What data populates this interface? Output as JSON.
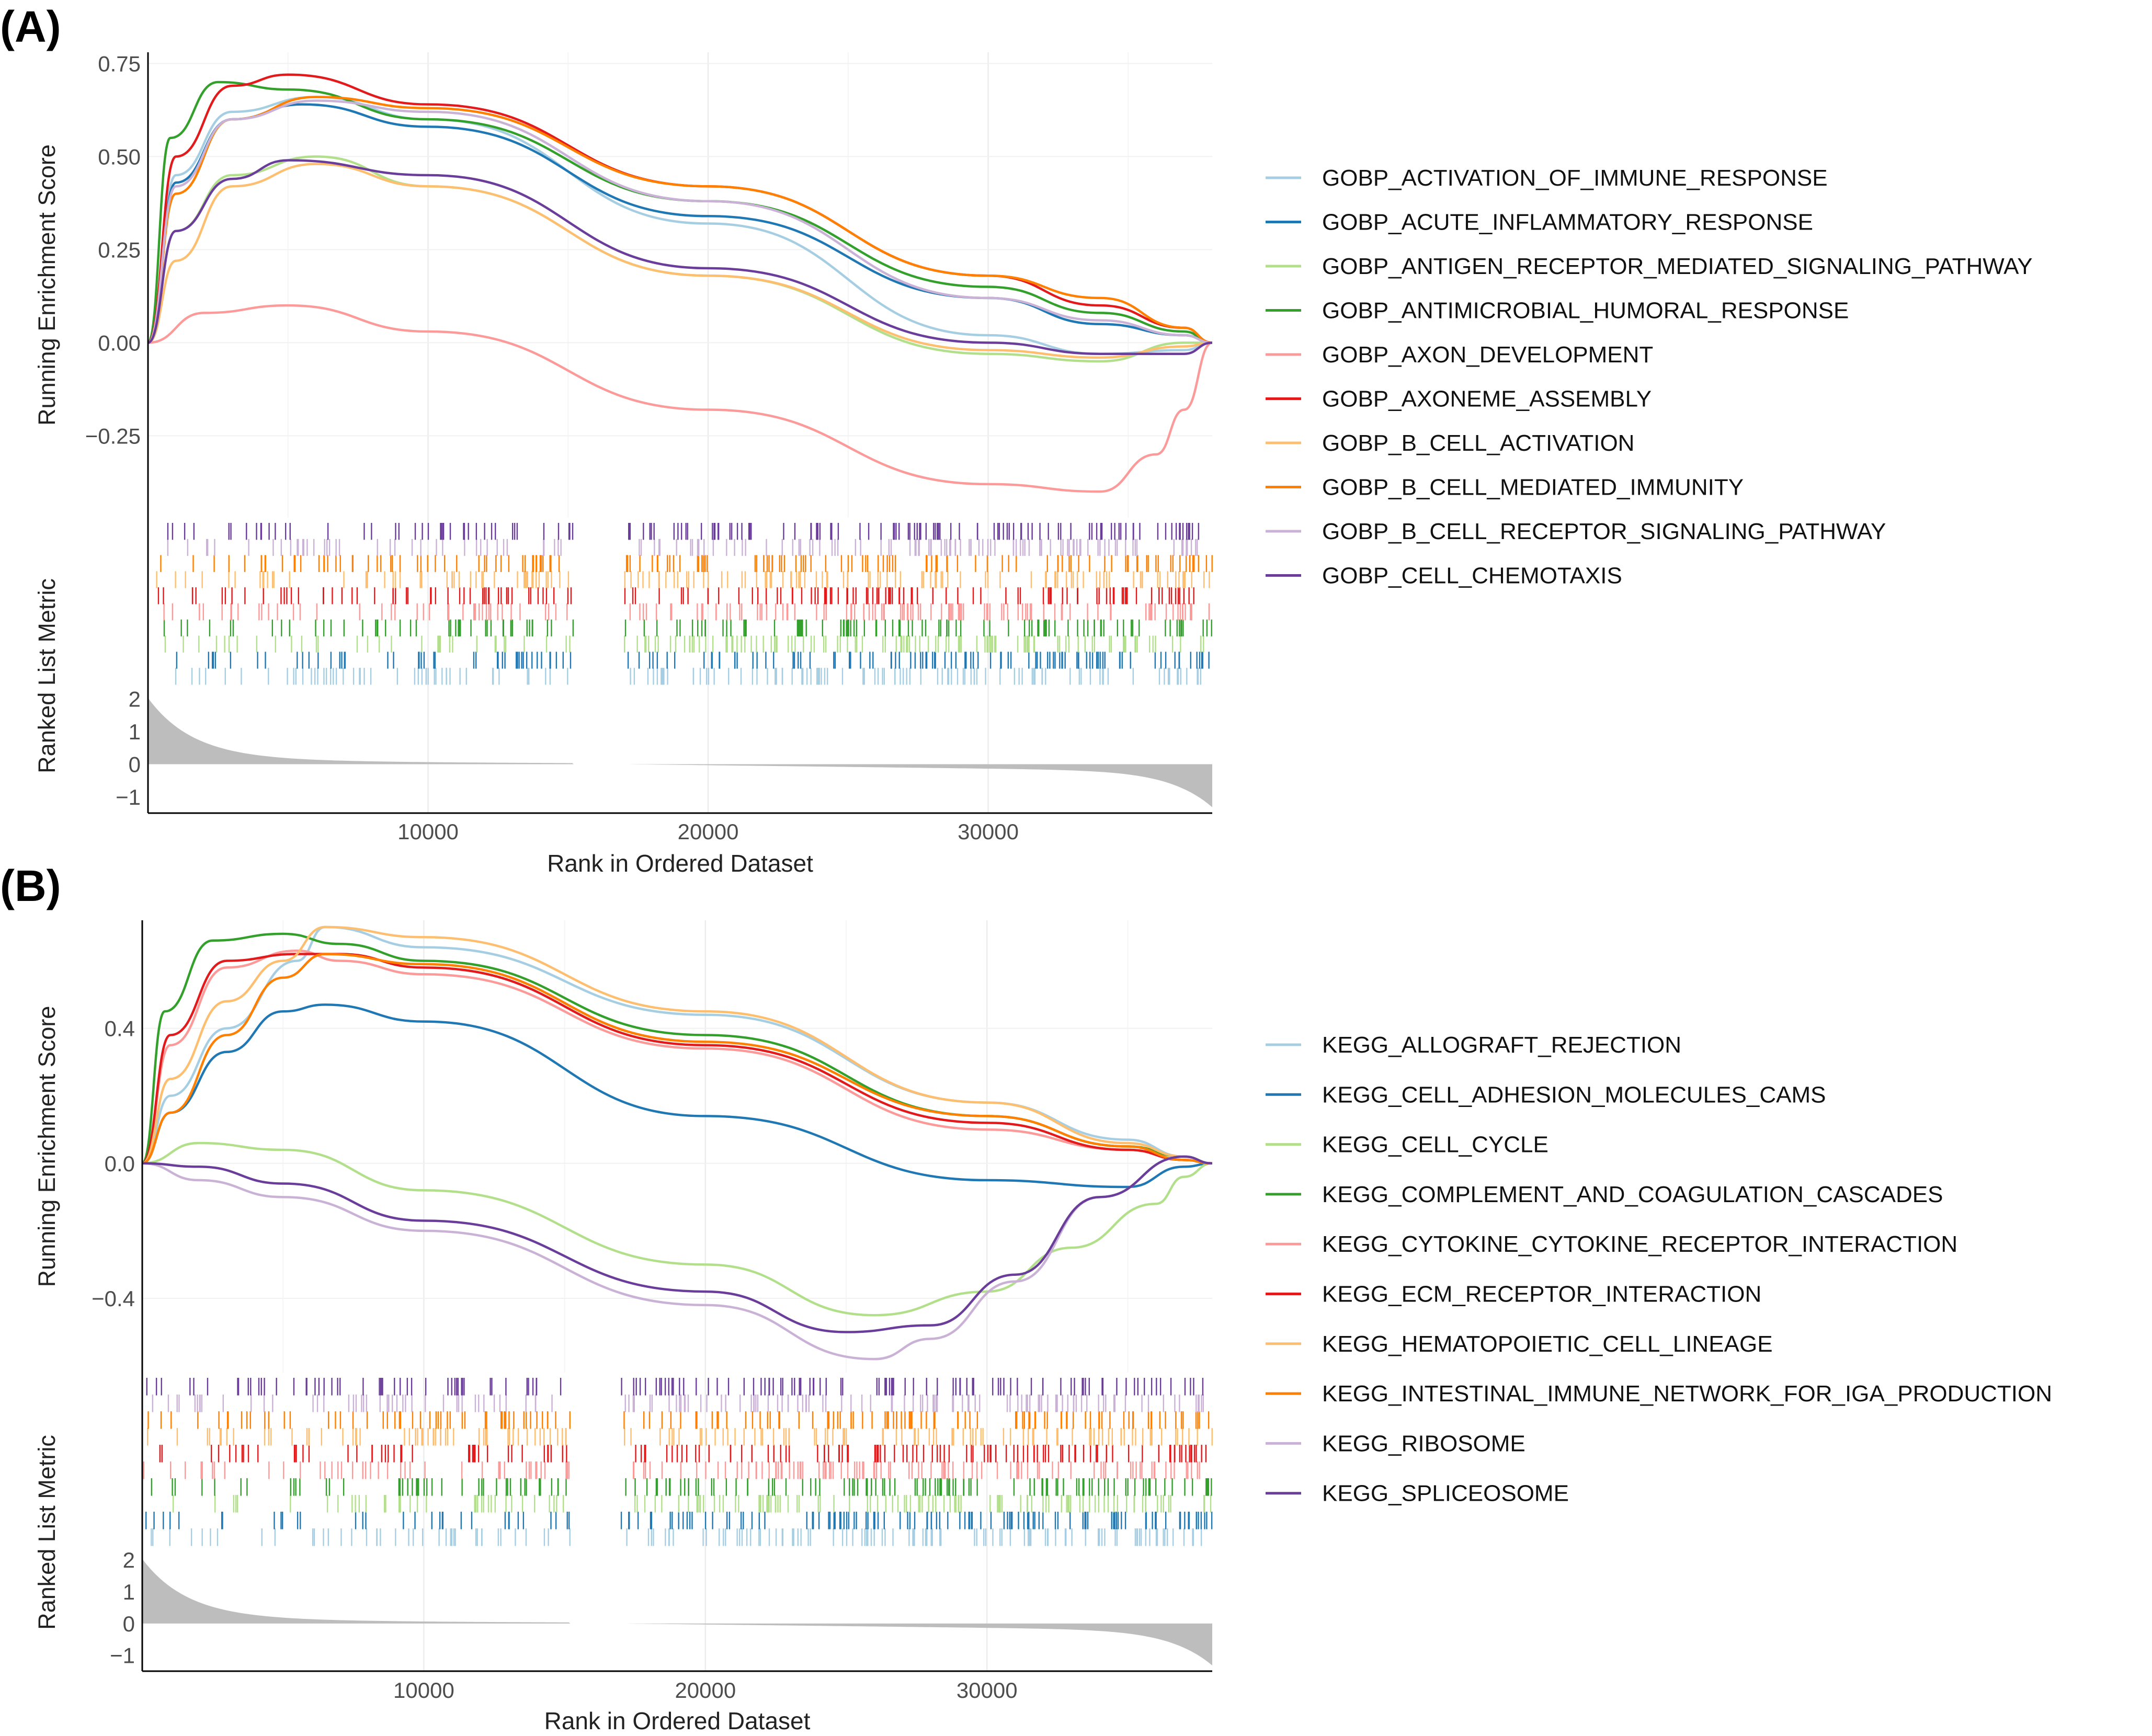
{
  "panels": [
    {
      "label": "(A)",
      "chart_data": {
        "type": "line",
        "title": "",
        "xlabel": "Rank in Ordered Dataset",
        "ylabel_top": "Running Enrichment Score",
        "ylabel_bottom": "Ranked List Metric",
        "xlim": [
          0,
          38000
        ],
        "ylim": [
          -0.47,
          0.78
        ],
        "x_ticks": [
          10000,
          20000,
          30000
        ],
        "x_tick_labels": [
          "10000",
          "20000",
          "30000"
        ],
        "y_ticks": [
          -0.25,
          0,
          0.25,
          0.5,
          0.75
        ],
        "y_tick_labels": [
          "−0.25",
          "0.00",
          "0.25",
          "0.50",
          "0.75"
        ],
        "metric_ylim": [
          -1.5,
          2.3
        ],
        "metric_ticks": [
          2,
          1,
          0,
          -1
        ],
        "metric_tick_labels": [
          "2",
          "1",
          "0",
          "−1"
        ],
        "metric_fill": "#bdbdbd",
        "gap_range": [
          15200,
          17000
        ],
        "legend_position": "right",
        "series": [
          {
            "name": "GOBP_ACTIVATION_OF_IMMUNE_RESPONSE",
            "color": "#a6cee3",
            "x": [
              0,
              1000,
              3000,
              6000,
              10000,
              20000,
              30000,
              34000,
              37000,
              38000
            ],
            "values": [
              0,
              0.45,
              0.62,
              0.66,
              0.6,
              0.32,
              0.02,
              -0.03,
              -0.02,
              0
            ]
          },
          {
            "name": "GOBP_ACUTE_INFLAMMATORY_RESPONSE",
            "color": "#1f78b4",
            "x": [
              0,
              1000,
              3000,
              5500,
              10000,
              20000,
              30000,
              34000,
              37000,
              38000
            ],
            "values": [
              0,
              0.43,
              0.6,
              0.64,
              0.58,
              0.34,
              0.12,
              0.05,
              0.02,
              0
            ]
          },
          {
            "name": "GOBP_ANTIGEN_RECEPTOR_MEDIATED_SIGNALING_PATHWAY",
            "color": "#b2df8a",
            "x": [
              0,
              1000,
              3000,
              6000,
              10000,
              20000,
              30000,
              34000,
              37000,
              38000
            ],
            "values": [
              0,
              0.3,
              0.45,
              0.5,
              0.42,
              0.18,
              -0.03,
              -0.05,
              0,
              0
            ]
          },
          {
            "name": "GOBP_ANTIMICROBIAL_HUMORAL_RESPONSE",
            "color": "#33a02c",
            "x": [
              0,
              800,
              2500,
              5000,
              10000,
              20000,
              30000,
              34000,
              37000,
              38000
            ],
            "values": [
              0,
              0.55,
              0.7,
              0.68,
              0.6,
              0.38,
              0.15,
              0.08,
              0.03,
              0
            ]
          },
          {
            "name": "GOBP_AXON_DEVELOPMENT",
            "color": "#fb9a99",
            "x": [
              0,
              2000,
              5000,
              10000,
              20000,
              30000,
              34000,
              36000,
              37000,
              38000
            ],
            "values": [
              0,
              0.08,
              0.1,
              0.03,
              -0.18,
              -0.38,
              -0.4,
              -0.3,
              -0.18,
              0
            ]
          },
          {
            "name": "GOBP_AXONEME_ASSEMBLY",
            "color": "#e31a1c",
            "x": [
              0,
              1000,
              3000,
              5000,
              10000,
              20000,
              30000,
              34000,
              37000,
              38000
            ],
            "values": [
              0,
              0.5,
              0.69,
              0.72,
              0.64,
              0.42,
              0.18,
              0.1,
              0.04,
              0
            ]
          },
          {
            "name": "GOBP_B_CELL_ACTIVATION",
            "color": "#fdbf6f",
            "x": [
              0,
              1000,
              3000,
              6000,
              10000,
              20000,
              30000,
              34000,
              37000,
              38000
            ],
            "values": [
              0,
              0.22,
              0.42,
              0.48,
              0.42,
              0.18,
              -0.02,
              -0.04,
              -0.01,
              0
            ]
          },
          {
            "name": "GOBP_B_CELL_MEDIATED_IMMUNITY",
            "color": "#ff7f00",
            "x": [
              0,
              1000,
              3000,
              6000,
              10000,
              20000,
              30000,
              34000,
              37000,
              38000
            ],
            "values": [
              0,
              0.4,
              0.6,
              0.66,
              0.63,
              0.42,
              0.18,
              0.12,
              0.04,
              0
            ]
          },
          {
            "name": "GOBP_B_CELL_RECEPTOR_SIGNALING_PATHWAY",
            "color": "#cab2d6",
            "x": [
              0,
              1000,
              3000,
              6000,
              10000,
              20000,
              30000,
              34000,
              37000,
              38000
            ],
            "values": [
              0,
              0.42,
              0.6,
              0.65,
              0.62,
              0.38,
              0.12,
              0.06,
              0.02,
              0
            ]
          },
          {
            "name": "GOBP_CELL_CHEMOTAXIS",
            "color": "#6a3d9a",
            "x": [
              0,
              1000,
              3000,
              5000,
              10000,
              20000,
              30000,
              34000,
              37000,
              38000
            ],
            "values": [
              0,
              0.3,
              0.44,
              0.49,
              0.45,
              0.2,
              0,
              -0.03,
              -0.03,
              0
            ]
          }
        ]
      }
    },
    {
      "label": "(B)",
      "chart_data": {
        "type": "line",
        "title": "",
        "xlabel": "Rank in Ordered Dataset",
        "ylabel_top": "Running Enrichment Score",
        "ylabel_bottom": "Ranked List Metric",
        "xlim": [
          0,
          38000
        ],
        "ylim": [
          -0.62,
          0.72
        ],
        "x_ticks": [
          10000,
          20000,
          30000
        ],
        "x_tick_labels": [
          "10000",
          "20000",
          "30000"
        ],
        "y_ticks": [
          -0.4,
          0,
          0.4
        ],
        "y_tick_labels": [
          "−0.4",
          "0.0",
          "0.4"
        ],
        "metric_ylim": [
          -1.5,
          2.3
        ],
        "metric_ticks": [
          2,
          1,
          0,
          -1
        ],
        "metric_tick_labels": [
          "2",
          "1",
          "0",
          "−1"
        ],
        "metric_fill": "#bdbdbd",
        "gap_range": [
          15200,
          17000
        ],
        "legend_position": "right",
        "series": [
          {
            "name": "KEGG_ALLOGRAFT_REJECTION",
            "color": "#a6cee3",
            "x": [
              0,
              1000,
              3000,
              5500,
              6500,
              10000,
              20000,
              30000,
              35000,
              37000,
              38000
            ],
            "values": [
              0,
              0.2,
              0.4,
              0.6,
              0.7,
              0.64,
              0.44,
              0.18,
              0.07,
              0.02,
              0
            ]
          },
          {
            "name": "KEGG_CELL_ADHESION_MOLECULES_CAMS",
            "color": "#1f78b4",
            "x": [
              0,
              1000,
              3000,
              5000,
              6500,
              10000,
              20000,
              30000,
              35000,
              37000,
              38000
            ],
            "values": [
              0,
              0.15,
              0.33,
              0.45,
              0.47,
              0.42,
              0.14,
              -0.05,
              -0.07,
              -0.01,
              0
            ]
          },
          {
            "name": "KEGG_CELL_CYCLE",
            "color": "#b2df8a",
            "x": [
              0,
              2000,
              5000,
              10000,
              20000,
              26000,
              30000,
              33000,
              36000,
              37000,
              38000
            ],
            "values": [
              0,
              0.06,
              0.04,
              -0.08,
              -0.3,
              -0.45,
              -0.38,
              -0.25,
              -0.12,
              -0.04,
              0
            ]
          },
          {
            "name": "KEGG_COMPLEMENT_AND_COAGULATION_CASCADES",
            "color": "#33a02c",
            "x": [
              0,
              800,
              2500,
              5000,
              7000,
              10000,
              20000,
              30000,
              35000,
              37000,
              38000
            ],
            "values": [
              0,
              0.45,
              0.66,
              0.68,
              0.65,
              0.6,
              0.38,
              0.14,
              0.05,
              0.02,
              0
            ]
          },
          {
            "name": "KEGG_CYTOKINE_CYTOKINE_RECEPTOR_INTERACTION",
            "color": "#fb9a99",
            "x": [
              0,
              1000,
              3000,
              5500,
              7000,
              10000,
              20000,
              30000,
              35000,
              37000,
              38000
            ],
            "values": [
              0,
              0.35,
              0.58,
              0.63,
              0.6,
              0.56,
              0.34,
              0.1,
              0.04,
              0.01,
              0
            ]
          },
          {
            "name": "KEGG_ECM_RECEPTOR_INTERACTION",
            "color": "#e31a1c",
            "x": [
              0,
              1000,
              3000,
              5500,
              7000,
              10000,
              20000,
              30000,
              35000,
              37000,
              38000
            ],
            "values": [
              0,
              0.38,
              0.6,
              0.62,
              0.62,
              0.58,
              0.35,
              0.12,
              0.04,
              0.01,
              0
            ]
          },
          {
            "name": "KEGG_HEMATOPOIETIC_CELL_LINEAGE",
            "color": "#fdbf6f",
            "x": [
              0,
              1000,
              3000,
              5000,
              6500,
              10000,
              20000,
              30000,
              35000,
              37000,
              38000
            ],
            "values": [
              0,
              0.25,
              0.48,
              0.6,
              0.7,
              0.67,
              0.45,
              0.18,
              0.06,
              0.02,
              0
            ]
          },
          {
            "name": "KEGG_INTESTINAL_IMMUNE_NETWORK_FOR_IGA_PRODUCTION",
            "color": "#ff7f00",
            "x": [
              0,
              1000,
              3000,
              5000,
              6500,
              10000,
              20000,
              30000,
              35000,
              37000,
              38000
            ],
            "values": [
              0,
              0.15,
              0.38,
              0.55,
              0.62,
              0.59,
              0.36,
              0.14,
              0.05,
              0.01,
              0
            ]
          },
          {
            "name": "KEGG_RIBOSOME",
            "color": "#cab2d6",
            "x": [
              0,
              2000,
              5000,
              10000,
              20000,
              26000,
              28000,
              31000,
              34000,
              37000,
              38000
            ],
            "values": [
              0,
              -0.05,
              -0.1,
              -0.2,
              -0.42,
              -0.58,
              -0.52,
              -0.35,
              -0.1,
              0.02,
              0
            ]
          },
          {
            "name": "KEGG_SPLICEOSOME",
            "color": "#6a3d9a",
            "x": [
              0,
              2000,
              5000,
              10000,
              20000,
              25000,
              28000,
              31000,
              34000,
              37000,
              38000
            ],
            "values": [
              0,
              -0.01,
              -0.06,
              -0.17,
              -0.38,
              -0.5,
              -0.48,
              -0.33,
              -0.1,
              0.02,
              0
            ]
          }
        ]
      }
    }
  ]
}
